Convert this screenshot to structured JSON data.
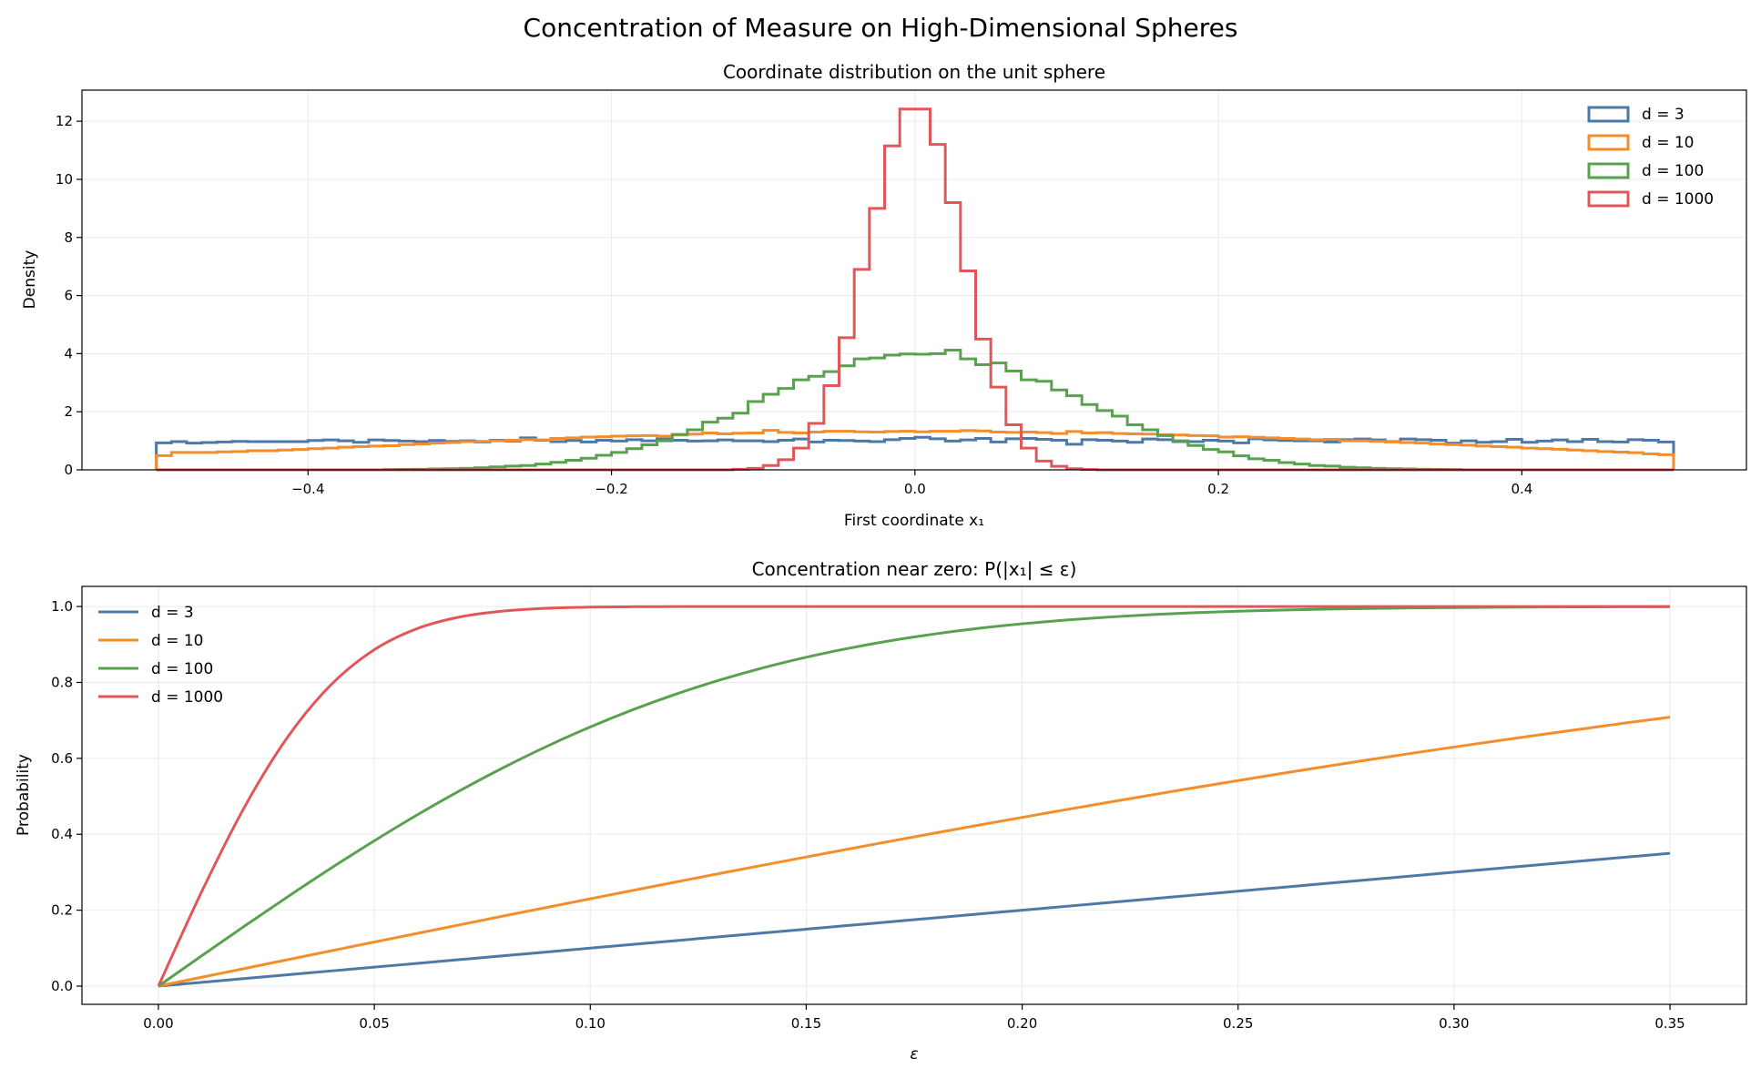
{
  "suptitle": "Concentration of Measure on High-Dimensional Spheres",
  "colors": {
    "d3": "#4e79a7",
    "d10": "#f28e2b",
    "d100": "#59a14f",
    "d1000": "#e15759"
  },
  "chart_data": [
    {
      "type": "histogram-step",
      "title": "Coordinate distribution on the unit sphere",
      "xlabel": "First coordinate x₁",
      "ylabel": "Density",
      "xlim": [
        -0.549,
        0.548
      ],
      "ylim": [
        0,
        13.07
      ],
      "xticks": [
        -0.4,
        -0.2,
        0.0,
        0.2,
        0.4
      ],
      "xtick_labels": [
        "−0.4",
        "−0.2",
        "0.0",
        "0.2",
        "0.4"
      ],
      "yticks": [
        0,
        2,
        4,
        6,
        8,
        10,
        12
      ],
      "ytick_labels": [
        "0",
        "2",
        "4",
        "6",
        "8",
        "10",
        "12"
      ],
      "grid": true,
      "legend": "upper right",
      "bin_range": [
        -0.5,
        0.5
      ],
      "bin_width": 0.01,
      "series": [
        {
          "name": "d = 3",
          "color": "#4e79a7",
          "values": [
            0.93,
            0.97,
            0.92,
            0.94,
            0.96,
            0.98,
            0.97,
            0.97,
            0.97,
            0.97,
            1.01,
            1.03,
            1.0,
            0.95,
            1.03,
            1.01,
            0.99,
            0.97,
            1.01,
            0.98,
            1.0,
            0.96,
            1.02,
            0.99,
            1.1,
            1.02,
            0.97,
            1.01,
            0.96,
            1.02,
            0.99,
            1.04,
            1.0,
            1.06,
            1.02,
            0.99,
            1.0,
            1.03,
            1.0,
            1.0,
            0.97,
            1.02,
            1.06,
            0.96,
            1.02,
            1.01,
            0.99,
            0.97,
            1.04,
            1.08,
            1.12,
            1.07,
            0.99,
            1.03,
            1.08,
            0.96,
            1.07,
            1.08,
            1.05,
            1.02,
            0.88,
            1.04,
            1.02,
            0.99,
            0.95,
            1.06,
            1.04,
            0.97,
            0.97,
            1.02,
            0.99,
            0.93,
            1.07,
            1.03,
            1.01,
            1.0,
            1.0,
            0.96,
            1.04,
            1.06,
            1.03,
            0.97,
            1.06,
            1.04,
            1.02,
            0.92,
            1.0,
            0.95,
            0.97,
            1.05,
            0.95,
            0.99,
            1.03,
            0.97,
            1.05,
            0.97,
            0.96,
            1.04,
            1.02,
            0.96
          ]
        },
        {
          "name": "d = 10",
          "color": "#f28e2b",
          "values": [
            0.49,
            0.6,
            0.6,
            0.6,
            0.62,
            0.63,
            0.66,
            0.66,
            0.68,
            0.7,
            0.73,
            0.75,
            0.78,
            0.8,
            0.82,
            0.83,
            0.87,
            0.89,
            0.92,
            0.94,
            0.97,
            0.98,
            1.0,
            1.02,
            1.04,
            1.03,
            1.08,
            1.1,
            1.13,
            1.14,
            1.16,
            1.17,
            1.18,
            1.16,
            1.2,
            1.23,
            1.27,
            1.24,
            1.26,
            1.27,
            1.36,
            1.29,
            1.27,
            1.3,
            1.33,
            1.33,
            1.31,
            1.3,
            1.32,
            1.33,
            1.31,
            1.33,
            1.33,
            1.35,
            1.34,
            1.3,
            1.29,
            1.3,
            1.28,
            1.25,
            1.32,
            1.27,
            1.28,
            1.25,
            1.24,
            1.23,
            1.21,
            1.2,
            1.18,
            1.17,
            1.13,
            1.14,
            1.12,
            1.1,
            1.08,
            1.06,
            1.04,
            1.05,
            1.0,
            1.0,
            0.98,
            0.96,
            0.94,
            0.92,
            0.89,
            0.87,
            0.85,
            0.82,
            0.8,
            0.78,
            0.75,
            0.73,
            0.71,
            0.68,
            0.66,
            0.63,
            0.61,
            0.59,
            0.55,
            0.52
          ]
        },
        {
          "name": "d = 100",
          "color": "#59a14f",
          "values": [
            0,
            0,
            0,
            0,
            0,
            0,
            0,
            0,
            0,
            0,
            0,
            0,
            0,
            0,
            0,
            0.01,
            0.015,
            0.02,
            0.03,
            0.04,
            0.05,
            0.07,
            0.1,
            0.13,
            0.15,
            0.2,
            0.26,
            0.33,
            0.4,
            0.5,
            0.6,
            0.73,
            0.86,
            1.0,
            1.22,
            1.38,
            1.64,
            1.78,
            1.95,
            2.35,
            2.6,
            2.8,
            3.1,
            3.22,
            3.38,
            3.58,
            3.82,
            3.85,
            3.95,
            3.99,
            3.98,
            4.0,
            4.12,
            3.82,
            3.62,
            3.68,
            3.4,
            3.1,
            3.05,
            2.75,
            2.55,
            2.25,
            2.04,
            1.85,
            1.55,
            1.38,
            1.18,
            1.0,
            0.84,
            0.7,
            0.62,
            0.48,
            0.38,
            0.33,
            0.25,
            0.2,
            0.15,
            0.13,
            0.09,
            0.07,
            0.05,
            0.04,
            0.03,
            0.02,
            0.015,
            0.01,
            0,
            0,
            0,
            0,
            0,
            0,
            0,
            0,
            0,
            0,
            0,
            0,
            0,
            0
          ]
        },
        {
          "name": "d = 1000",
          "color": "#e15759",
          "values": [
            0,
            0,
            0,
            0,
            0,
            0,
            0,
            0,
            0,
            0,
            0,
            0,
            0,
            0,
            0,
            0,
            0,
            0,
            0,
            0,
            0,
            0,
            0,
            0,
            0,
            0,
            0,
            0,
            0,
            0,
            0,
            0,
            0,
            0,
            0,
            0,
            0,
            0,
            0.02,
            0.05,
            0.15,
            0.35,
            0.75,
            1.6,
            2.9,
            4.55,
            6.9,
            9.0,
            11.15,
            12.42,
            12.42,
            11.2,
            9.2,
            6.85,
            4.5,
            2.85,
            1.55,
            0.75,
            0.3,
            0.12,
            0.04,
            0.01,
            0,
            0,
            0,
            0,
            0,
            0,
            0,
            0,
            0,
            0,
            0,
            0,
            0,
            0,
            0,
            0,
            0,
            0,
            0,
            0,
            0,
            0,
            0,
            0,
            0,
            0,
            0,
            0,
            0,
            0,
            0,
            0,
            0,
            0,
            0,
            0,
            0,
            0
          ]
        }
      ]
    },
    {
      "type": "line",
      "title": "Concentration near zero: P(|x₁| ≤ ε)",
      "xlabel": "ε",
      "ylabel": "Probability",
      "xlim": [
        -0.0177,
        0.3677
      ],
      "ylim": [
        -0.048,
        1.053
      ],
      "xticks": [
        0,
        0.05,
        0.1,
        0.15,
        0.2,
        0.25,
        0.3,
        0.35
      ],
      "xtick_labels": [
        "0.00",
        "0.05",
        "0.10",
        "0.15",
        "0.20",
        "0.25",
        "0.30",
        "0.35"
      ],
      "yticks": [
        0,
        0.2,
        0.4,
        0.6,
        0.8,
        1.0
      ],
      "ytick_labels": [
        "0.0",
        "0.2",
        "0.4",
        "0.6",
        "0.8",
        "1.0"
      ],
      "grid": true,
      "legend": "upper left",
      "x": [
        0,
        0.01,
        0.02,
        0.03,
        0.04,
        0.05,
        0.06,
        0.07,
        0.08,
        0.09,
        0.1,
        0.11,
        0.12,
        0.13,
        0.14,
        0.15,
        0.16,
        0.17,
        0.18,
        0.19,
        0.2,
        0.21,
        0.22,
        0.23,
        0.24,
        0.25,
        0.26,
        0.27,
        0.28,
        0.29,
        0.3,
        0.31,
        0.32,
        0.33,
        0.34,
        0.35
      ],
      "series": [
        {
          "name": "d = 3",
          "color": "#4e79a7",
          "values": [
            0,
            0.01,
            0.02,
            0.03,
            0.04,
            0.05,
            0.06,
            0.07,
            0.08,
            0.09,
            0.1,
            0.11,
            0.12,
            0.13,
            0.14,
            0.15,
            0.16,
            0.17,
            0.18,
            0.19,
            0.2,
            0.21,
            0.22,
            0.23,
            0.24,
            0.25,
            0.26,
            0.27,
            0.28,
            0.29,
            0.3,
            0.31,
            0.32,
            0.33,
            0.34,
            0.35
          ]
        },
        {
          "name": "d = 10",
          "color": "#f28e2b",
          "values": [
            0,
            0.0233,
            0.0465,
            0.0698,
            0.093,
            0.1161,
            0.1391,
            0.162,
            0.1849,
            0.2075,
            0.2301,
            0.2525,
            0.2747,
            0.2968,
            0.3186,
            0.3402,
            0.3616,
            0.3827,
            0.4036,
            0.4242,
            0.4445,
            0.4646,
            0.4843,
            0.5037,
            0.5228,
            0.5415,
            0.56,
            0.578,
            0.5957,
            0.613,
            0.6298,
            0.6462,
            0.6623,
            0.678,
            0.6937,
            0.7086
          ]
        },
        {
          "name": "d = 100",
          "color": "#59a14f",
          "values": [
            0,
            0.0797,
            0.1585,
            0.2358,
            0.3108,
            0.3829,
            0.4515,
            0.5161,
            0.5763,
            0.6319,
            0.6827,
            0.7287,
            0.7699,
            0.8064,
            0.8385,
            0.8664,
            0.8904,
            0.9109,
            0.9281,
            0.9426,
            0.9545,
            0.9643,
            0.9722,
            0.9786,
            0.9836,
            0.9876,
            0.9907,
            0.9931,
            0.9949,
            0.9963,
            0.9973,
            0.9981,
            0.9986,
            0.999,
            0.9993,
            0.9995
          ]
        },
        {
          "name": "d = 1000",
          "color": "#e15759",
          "values": [
            0,
            0.2482,
            0.4729,
            0.6572,
            0.7941,
            0.8862,
            0.9422,
            0.9729,
            0.9883,
            0.9955,
            0.9984,
            0.9995,
            0.9998,
            1,
            1,
            1,
            1,
            1,
            1,
            1,
            1,
            1,
            1,
            1,
            1,
            1,
            1,
            1,
            1,
            1,
            1,
            1,
            1,
            1,
            1,
            1
          ]
        }
      ]
    }
  ]
}
